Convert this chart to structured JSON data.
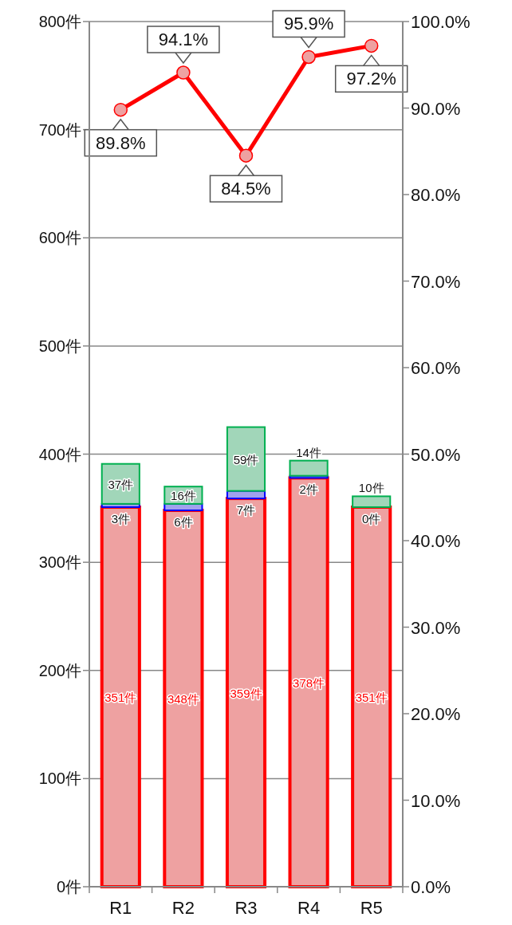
{
  "chart_data": {
    "type": "bar",
    "stacked": true,
    "categories": [
      "R1",
      "R2",
      "R3",
      "R4",
      "R5"
    ],
    "series": [
      {
        "color": "#ff0000",
        "values": [
          351,
          348,
          359,
          378,
          351
        ],
        "value_labels": [
          "351件",
          "348件",
          "359件",
          "378件",
          "351件"
        ]
      },
      {
        "color": "#0000ff",
        "values": [
          3,
          6,
          7,
          2,
          0
        ],
        "value_labels": [
          "3件",
          "6件",
          "7件",
          "2件",
          "0件"
        ]
      },
      {
        "color": "#00b050",
        "values": [
          37,
          16,
          59,
          14,
          10
        ],
        "value_labels": [
          "37件",
          "16件",
          "59件",
          "14件",
          "10件"
        ]
      },
      {
        "type": "line",
        "axis": "y2",
        "color": "#ff0000",
        "marker": "circle",
        "values": [
          89.8,
          94.1,
          84.5,
          95.9,
          97.2
        ],
        "value_labels": [
          "89.8%",
          "94.1%",
          "84.5%",
          "95.9%",
          "97.2%"
        ]
      }
    ],
    "ylim": [
      0,
      800
    ],
    "yticks": [
      {
        "value": 0,
        "label": "0件"
      },
      {
        "value": 100,
        "label": "100件"
      },
      {
        "value": 200,
        "label": "200件"
      },
      {
        "value": 300,
        "label": "300件"
      },
      {
        "value": 400,
        "label": "400件"
      },
      {
        "value": 500,
        "label": "500件"
      },
      {
        "value": 600,
        "label": "600件"
      },
      {
        "value": 700,
        "label": "700件"
      },
      {
        "value": 800,
        "label": "800件"
      }
    ],
    "y2lim": [
      0,
      100
    ],
    "y2ticks": [
      {
        "value": 0,
        "label": "0.0%"
      },
      {
        "value": 10,
        "label": "10.0%"
      },
      {
        "value": 20,
        "label": "20.0%"
      },
      {
        "value": 30,
        "label": "30.0%"
      },
      {
        "value": 40,
        "label": "40.0%"
      },
      {
        "value": 50,
        "label": "50.0%"
      },
      {
        "value": 60,
        "label": "60.0%"
      },
      {
        "value": 70,
        "label": "70.0%"
      },
      {
        "value": 80,
        "label": "80.0%"
      },
      {
        "value": 90,
        "label": "90.0%"
      },
      {
        "value": 100,
        "label": "100.0%"
      }
    ],
    "grid": "y"
  }
}
